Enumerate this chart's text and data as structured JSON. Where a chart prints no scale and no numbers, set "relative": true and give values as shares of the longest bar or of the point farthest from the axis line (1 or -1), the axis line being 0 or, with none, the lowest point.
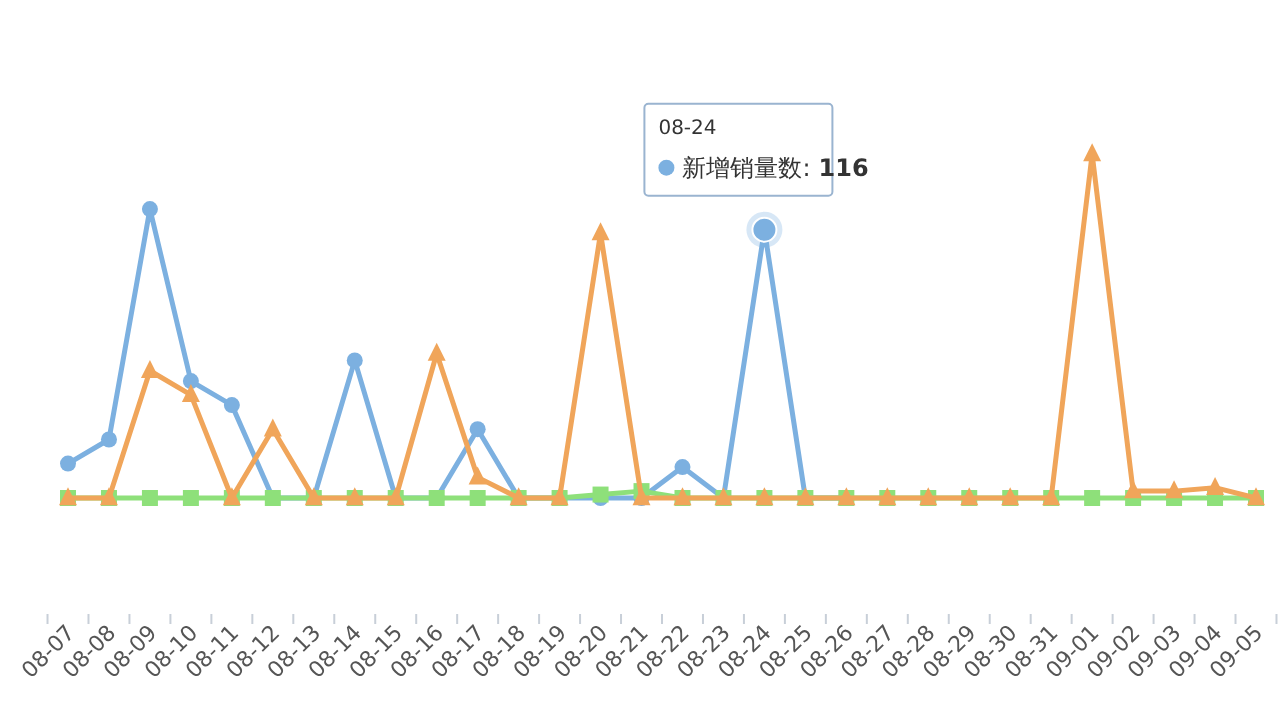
{
  "chart_data": {
    "type": "line",
    "relative": true,
    "categories": [
      "08-07",
      "08-08",
      "08-09",
      "08-10",
      "08-11",
      "08-12",
      "08-13",
      "08-14",
      "08-15",
      "08-16",
      "08-17",
      "08-18",
      "08-19",
      "08-20",
      "08-21",
      "08-22",
      "08-23",
      "08-24",
      "08-25",
      "08-26",
      "08-27",
      "08-28",
      "08-29",
      "08-30",
      "08-31",
      "09-01",
      "09-02",
      "09-03",
      "09-04",
      "09-05"
    ],
    "annotations": [
      {
        "text": "116",
        "x": "08-24",
        "y": 0.78
      }
    ],
    "series": [
      {
        "name": "新增销量数:",
        "color": "#7cb0e0",
        "marker": "circle",
        "values": [
          0.1,
          0.17,
          0.84,
          0.34,
          0.27,
          0,
          0,
          0.4,
          0,
          0,
          0.2,
          0,
          0,
          0,
          0,
          0.09,
          0,
          0.78,
          0,
          0,
          null,
          null,
          null,
          null,
          null,
          null,
          null,
          null,
          null,
          null
        ]
      },
      {
        "color": "#8ee07a",
        "marker": "square",
        "values": [
          0,
          0,
          0,
          0,
          0,
          0,
          0,
          0,
          0,
          0,
          0,
          0,
          0,
          0.01,
          0.02,
          0,
          0,
          0,
          0,
          0,
          0,
          0,
          0,
          0,
          0,
          0,
          0,
          0,
          0,
          0
        ]
      },
      {
        "color": "#f0a55a",
        "marker": "triangle",
        "values": [
          0,
          0,
          0.37,
          0.3,
          0,
          0.2,
          0,
          0,
          0,
          0.42,
          0.06,
          0,
          0,
          0.77,
          0,
          0,
          0,
          0,
          0,
          0,
          0,
          0,
          0,
          0,
          0,
          1,
          0.02,
          0.02,
          0.03,
          0
        ]
      }
    ]
  }
}
